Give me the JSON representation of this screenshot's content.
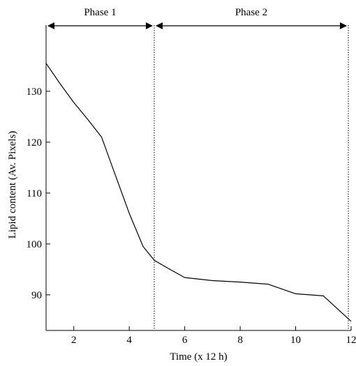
{
  "chart_data": {
    "type": "line",
    "xlabel": "Time (x 12 h)",
    "ylabel": "Lipid content (Av. Pixels)",
    "xlim": [
      1,
      12
    ],
    "ylim": [
      83,
      143
    ],
    "xticks": [
      2,
      4,
      6,
      8,
      10,
      12
    ],
    "yticks": [
      90,
      100,
      110,
      120,
      130
    ],
    "grid": false,
    "series": [
      {
        "x": [
          1,
          1.5,
          2,
          2.5,
          3,
          3.5,
          4,
          4.5,
          4.9,
          5.4,
          6,
          7,
          8,
          9,
          10,
          11,
          12
        ],
        "y": [
          135.5,
          131.5,
          127.8,
          124.5,
          121,
          113.5,
          106,
          99.5,
          96.8,
          95.2,
          93.4,
          92.8,
          92.5,
          92.1,
          90.2,
          89.8,
          84.8
        ]
      }
    ],
    "vlines": [
      4.9,
      11.9
    ],
    "annotations": [
      {
        "label": "Phase 1",
        "x_start": 1,
        "x_end": 4.9
      },
      {
        "label": "Phase 2",
        "x_start": 4.9,
        "x_end": 11.9
      }
    ]
  }
}
